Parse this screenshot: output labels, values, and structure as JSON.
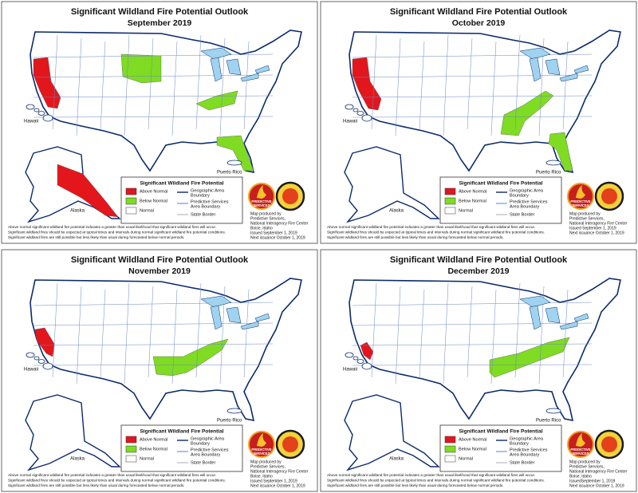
{
  "panels": [
    {
      "title": "Significant Wildland Fire Potential Outlook",
      "subtitle": "September 2019",
      "places": [
        "Hawaii",
        "Alaska",
        "Puerto Rico"
      ],
      "legend": {
        "title": "Significant Wildland Fire Potential",
        "items": [
          {
            "label": [
              "Above Normal"
            ],
            "color": "#e3161c"
          },
          {
            "label": [
              "Below Normal"
            ],
            "color": "#7fdc22"
          },
          {
            "label": [
              "Normal"
            ],
            "color": "#ffffff"
          },
          {
            "label": [
              "Geographic Area",
              "Boundary"
            ]
          },
          {
            "label": [
              "Predictive Services",
              "Area Boundary"
            ]
          },
          {
            "label": [
              "State Border"
            ]
          }
        ]
      },
      "logo": [
        "PREDICTIVE",
        "SERVICES"
      ],
      "credits": [
        "Map produced by",
        "Predictive Services,",
        "National Interagency Fire Center",
        "Boise, Idaho",
        "Issued September 1, 2019",
        "Next issuance October 1, 2019"
      ],
      "footnotes": [
        "Above normal significant wildland fire potential indicates a greater than usual likelihood that significant wildland fires will occur.",
        "Significant wildland fires should be expected at typical times and intervals during normal significant wildland fire potential conditions.",
        "Significant wildland fires are still possible but less likely than usual during forecasted below normal periods."
      ]
    },
    {
      "title": "Significant Wildland Fire Potential Outlook",
      "subtitle": "October 2019",
      "places": [
        "Hawaii",
        "Alaska",
        "Puerto Rico"
      ],
      "legend": {
        "title": "Significant Wildland Fire Potential",
        "items": [
          {
            "label": [
              "Above Normal"
            ],
            "color": "#e3161c"
          },
          {
            "label": [
              "Below Normal"
            ],
            "color": "#7fdc22"
          },
          {
            "label": [
              "Normal"
            ],
            "color": "#ffffff"
          },
          {
            "label": [
              "Geographic Area",
              "Boundary"
            ]
          },
          {
            "label": [
              "Predictive Services",
              "Area Boundary"
            ]
          },
          {
            "label": [
              "State Border"
            ]
          }
        ]
      },
      "logo": [
        "PREDICTIVE",
        "SERVICES"
      ],
      "credits": [
        "Map produced by",
        "Predictive Services,",
        "National Interagency Fire Center",
        "Issued September 1, 2019",
        "Next issuance October 1, 2019"
      ],
      "footnotes": [
        "Above normal significant wildland fire potential indicates a greater than usual likelihood that significant wildland fires will occur.",
        "Significant wildland fires should be expected at typical times and intervals during normal significant wildland fire potential conditions.",
        "Significant wildland fires are still possible but less likely than usual during forecasted below normal periods."
      ]
    },
    {
      "title": "Significant Wildland Fire Potential Outlook",
      "subtitle": "November 2019",
      "places": [
        "Hawaii",
        "Alaska",
        "Puerto Rico"
      ],
      "legend": {
        "title": "Significant Wildland Fire Potential",
        "items": [
          {
            "label": [
              "Above Normal"
            ],
            "color": "#e3161c"
          },
          {
            "label": [
              "Below Normal"
            ],
            "color": "#7fdc22"
          },
          {
            "label": [
              "Normal"
            ],
            "color": "#ffffff"
          },
          {
            "label": [
              "Geographic Area",
              "Boundary"
            ]
          },
          {
            "label": [
              "Predictive Services",
              "Area Boundary"
            ]
          },
          {
            "label": [
              "State Border"
            ]
          }
        ]
      },
      "logo": [
        "PREDICTIVE",
        "SERVICES"
      ],
      "credits": [
        "Map produced by",
        "Predictive Services,",
        "National Interagency Fire Center",
        "Boise, Idaho",
        "Issued September 1, 2019",
        "Next issuance October 1, 2019"
      ],
      "footnotes": [
        "Above normal significant wildland fire potential indicates a greater than usual likelihood that significant wildland fires will occur.",
        "Significant wildland fires should be expected at typical times and intervals during normal significant wildland fire potential conditions.",
        "Significant wildland fires are still possible but less likely than usual during forecasted below normal periods."
      ]
    },
    {
      "title": "Significant Wildland Fire Potential Outlook",
      "subtitle": "December 2019",
      "places": [
        "Hawaii",
        "Alaska",
        "Puerto Rico"
      ],
      "legend": {
        "title": "Significant Wildland Fire Potential",
        "items": [
          {
            "label": [
              "Above Normal"
            ],
            "color": "#e3161c"
          },
          {
            "label": [
              "Below Normal"
            ],
            "color": "#7fdc22"
          },
          {
            "label": [
              "Normal"
            ],
            "color": "#ffffff"
          },
          {
            "label": [
              "Geographic Area",
              "Boundary"
            ]
          },
          {
            "label": [
              "Predictive Services",
              "Area Boundary"
            ]
          },
          {
            "label": [
              "State Border"
            ]
          }
        ]
      },
      "logo": [
        "PREDICTIVE",
        "SERVICES"
      ],
      "credits": [
        "Map produced by",
        "Predictive Services,",
        "National Interagency Fire Center",
        "Boise, Idaho",
        "IssuedSeptember 1, 2019",
        "Next issuance October 1, 2019"
      ],
      "footnotes": [
        "Above normal significant wildland fire potential indicates a greater than usual likelihood that significant wildland fires will occur.",
        "Significant wildland fires should be expected at typical times and intervals during normal significant wildland fire potential conditions.",
        "Significant wildland fires are still possible but less likely than usual during forecasted below normal periods."
      ]
    }
  ]
}
